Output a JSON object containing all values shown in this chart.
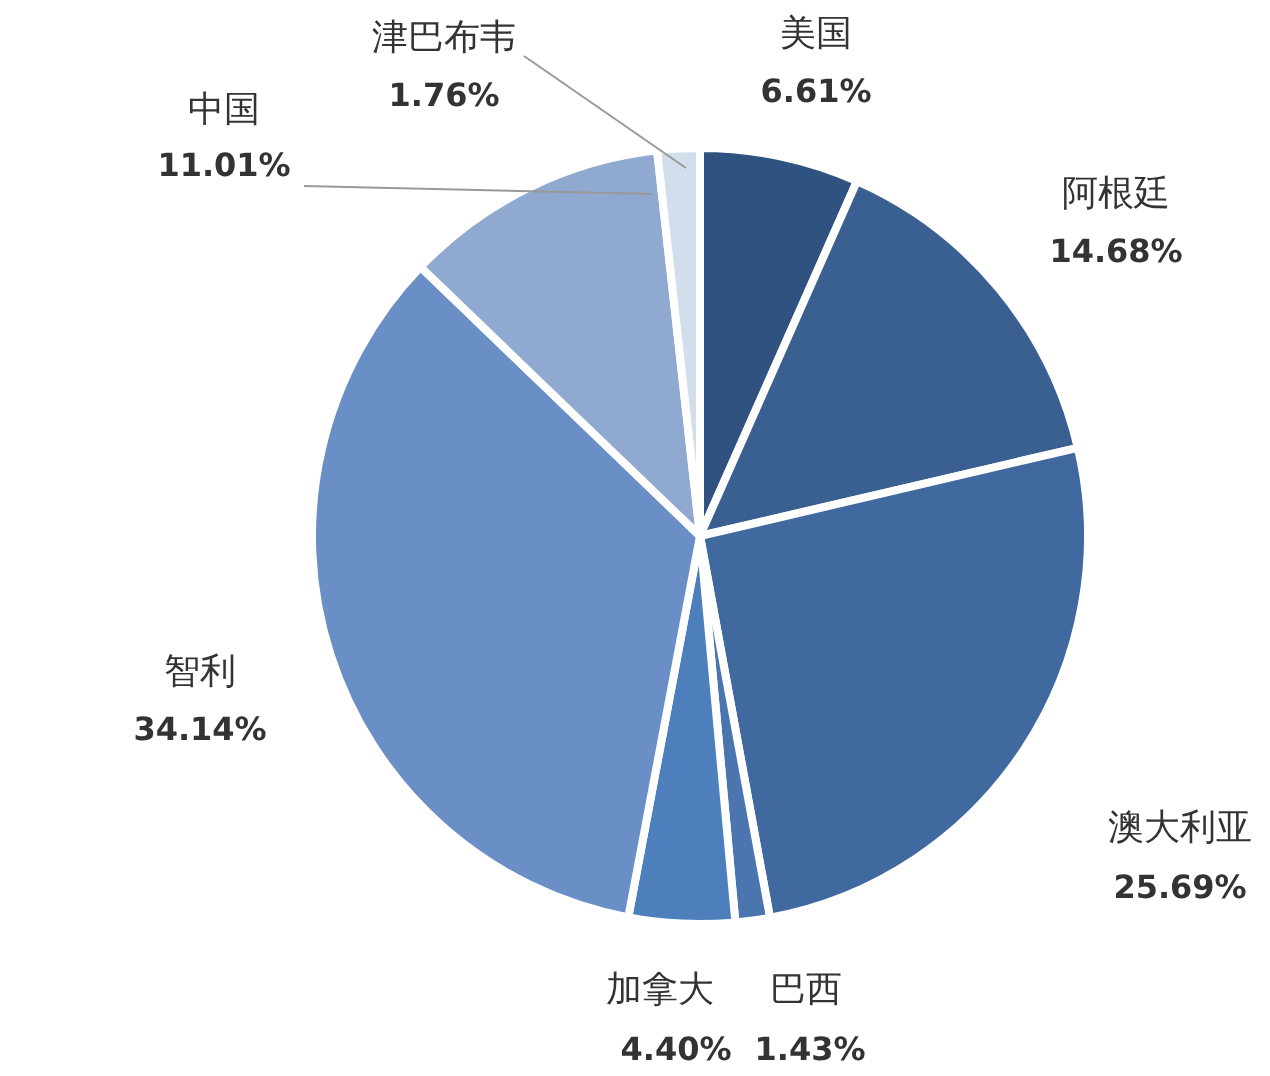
{
  "chart_data": {
    "type": "pie",
    "categories": [
      "美国",
      "阿根廷",
      "澳大利亚",
      "巴西",
      "加拿大",
      "智利",
      "中国",
      "津巴布韦"
    ],
    "values": [
      6.61,
      14.68,
      25.69,
      1.43,
      4.4,
      34.14,
      11.01,
      1.76
    ],
    "colors": [
      "#2f5280",
      "#3a5f91",
      "#40699f",
      "#4a75ae",
      "#4d7fbd",
      "#6a8fc6",
      "#8fa9d0",
      "#d3deec"
    ],
    "value_labels": [
      "6.61%",
      "14.68%",
      "25.69%",
      "1.43%",
      "4.40%",
      "34.14%",
      "11.01%",
      "1.76%"
    ],
    "legend": false
  }
}
